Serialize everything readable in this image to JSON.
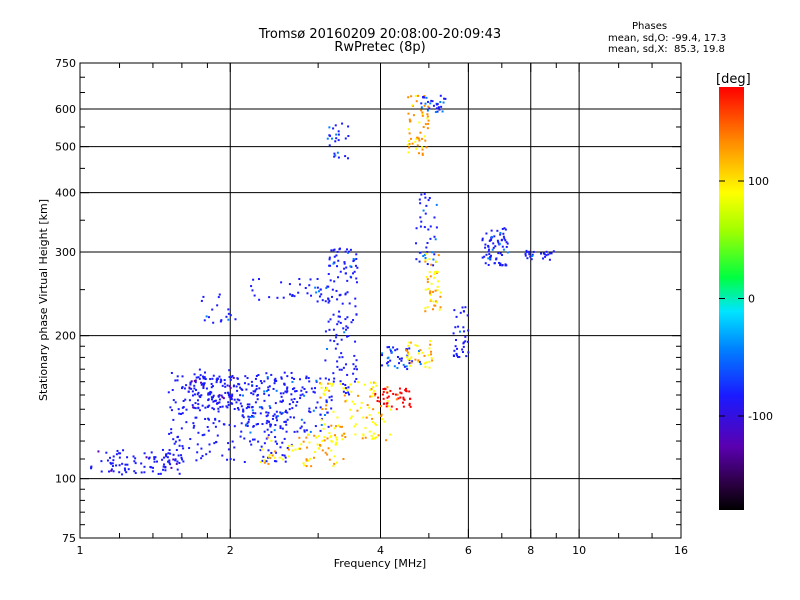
{
  "header": {
    "title_line1": "Tromsø 20160209 20:08:00-20:09:43",
    "title_line2": "RwPretec (8p)"
  },
  "phase_stats": {
    "heading": "Phases",
    "line1": "mean, sd,O: -99.4, 17.3",
    "line2": "mean, sd,X:  85.3, 19.8"
  },
  "colorbar": {
    "unit_label": "[deg]",
    "tick_labels": [
      "100",
      "0",
      "-100"
    ],
    "tick_values": [
      100,
      0,
      -100
    ],
    "range": [
      -180,
      180
    ]
  },
  "chart_data": {
    "type": "scatter",
    "title": "Tromsø 20160209 20:08:00-20:09:43",
    "subtitle": "RwPretec (8p)",
    "xlabel": "Frequency [MHz]",
    "ylabel": "Stationary phase Virtual Height [km]",
    "x_scale": "log",
    "y_scale": "log",
    "xlim": [
      1,
      16
    ],
    "ylim": [
      75,
      750
    ],
    "x_ticks": [
      1,
      2,
      4,
      6,
      8,
      10,
      16
    ],
    "x_tick_labels": [
      "1",
      "2",
      "4",
      "6",
      "8",
      "10",
      "16"
    ],
    "x_minor_ticks": [
      1.2,
      1.4,
      1.6,
      1.8,
      3,
      5,
      7,
      9,
      12,
      14
    ],
    "y_ticks": [
      75,
      100,
      200,
      300,
      400,
      500,
      600,
      750
    ],
    "y_tick_labels": [
      "75",
      "100",
      "200",
      "300",
      "400",
      "500",
      "600",
      "750"
    ],
    "y_minor_ticks": [
      80,
      85,
      90,
      95,
      110,
      120,
      130,
      140,
      150,
      160,
      170,
      180,
      190,
      250,
      350,
      450,
      550,
      650,
      700
    ],
    "grid_x": [
      2,
      4,
      6,
      8,
      10
    ],
    "grid_y": [
      100,
      200,
      300,
      400,
      500,
      600
    ],
    "grid": true,
    "colorscale": "rainbow phase [deg]",
    "color_range": [
      -180,
      180
    ],
    "clusters": [
      {
        "x": [
          1.05,
          1.6
        ],
        "y": [
          102,
          115
        ],
        "phase": -110,
        "n": 90
      },
      {
        "x": [
          1.5,
          2.7
        ],
        "y": [
          108,
          170
        ],
        "phase": -105,
        "n": 260
      },
      {
        "x": [
          1.65,
          2.1
        ],
        "y": [
          140,
          165
        ],
        "phase": -110,
        "n": 110
      },
      {
        "x": [
          2.1,
          3.2
        ],
        "y": [
          125,
          165
        ],
        "phase": -95,
        "n": 140
      },
      {
        "x": [
          2.3,
          3.4
        ],
        "y": [
          106,
          125
        ],
        "phase": 90,
        "n": 70
      },
      {
        "x": [
          3.0,
          4.2
        ],
        "y": [
          120,
          160
        ],
        "phase": 80,
        "n": 110
      },
      {
        "x": [
          3.9,
          4.6
        ],
        "y": [
          140,
          155
        ],
        "phase": 150,
        "n": 45
      },
      {
        "x": [
          3.1,
          3.6
        ],
        "y": [
          150,
          310
        ],
        "phase": -100,
        "n": 130
      },
      {
        "x": [
          3.1,
          3.5
        ],
        "y": [
          470,
          560
        ],
        "phase": -95,
        "n": 25
      },
      {
        "x": [
          2.2,
          3.3
        ],
        "y": [
          235,
          265
        ],
        "phase": -100,
        "n": 40
      },
      {
        "x": [
          1.75,
          2.05
        ],
        "y": [
          210,
          245
        ],
        "phase": -100,
        "n": 18
      },
      {
        "x": [
          4.0,
          4.9
        ],
        "y": [
          170,
          190
        ],
        "phase": -95,
        "n": 40
      },
      {
        "x": [
          4.5,
          5.1
        ],
        "y": [
          170,
          195
        ],
        "phase": 85,
        "n": 35
      },
      {
        "x": [
          4.5,
          5.0
        ],
        "y": [
          480,
          640
        ],
        "phase": 100,
        "n": 55
      },
      {
        "x": [
          4.8,
          5.4
        ],
        "y": [
          590,
          640
        ],
        "phase": -95,
        "n": 30
      },
      {
        "x": [
          4.7,
          5.2
        ],
        "y": [
          280,
          400
        ],
        "phase": -95,
        "n": 40
      },
      {
        "x": [
          4.9,
          5.3
        ],
        "y": [
          220,
          300
        ],
        "phase": 90,
        "n": 45
      },
      {
        "x": [
          5.6,
          6.0
        ],
        "y": [
          180,
          230
        ],
        "phase": -100,
        "n": 35
      },
      {
        "x": [
          6.4,
          7.2
        ],
        "y": [
          280,
          340
        ],
        "phase": -100,
        "n": 70
      },
      {
        "x": [
          7.8,
          8.9
        ],
        "y": [
          288,
          302
        ],
        "phase": -100,
        "n": 25
      }
    ]
  }
}
